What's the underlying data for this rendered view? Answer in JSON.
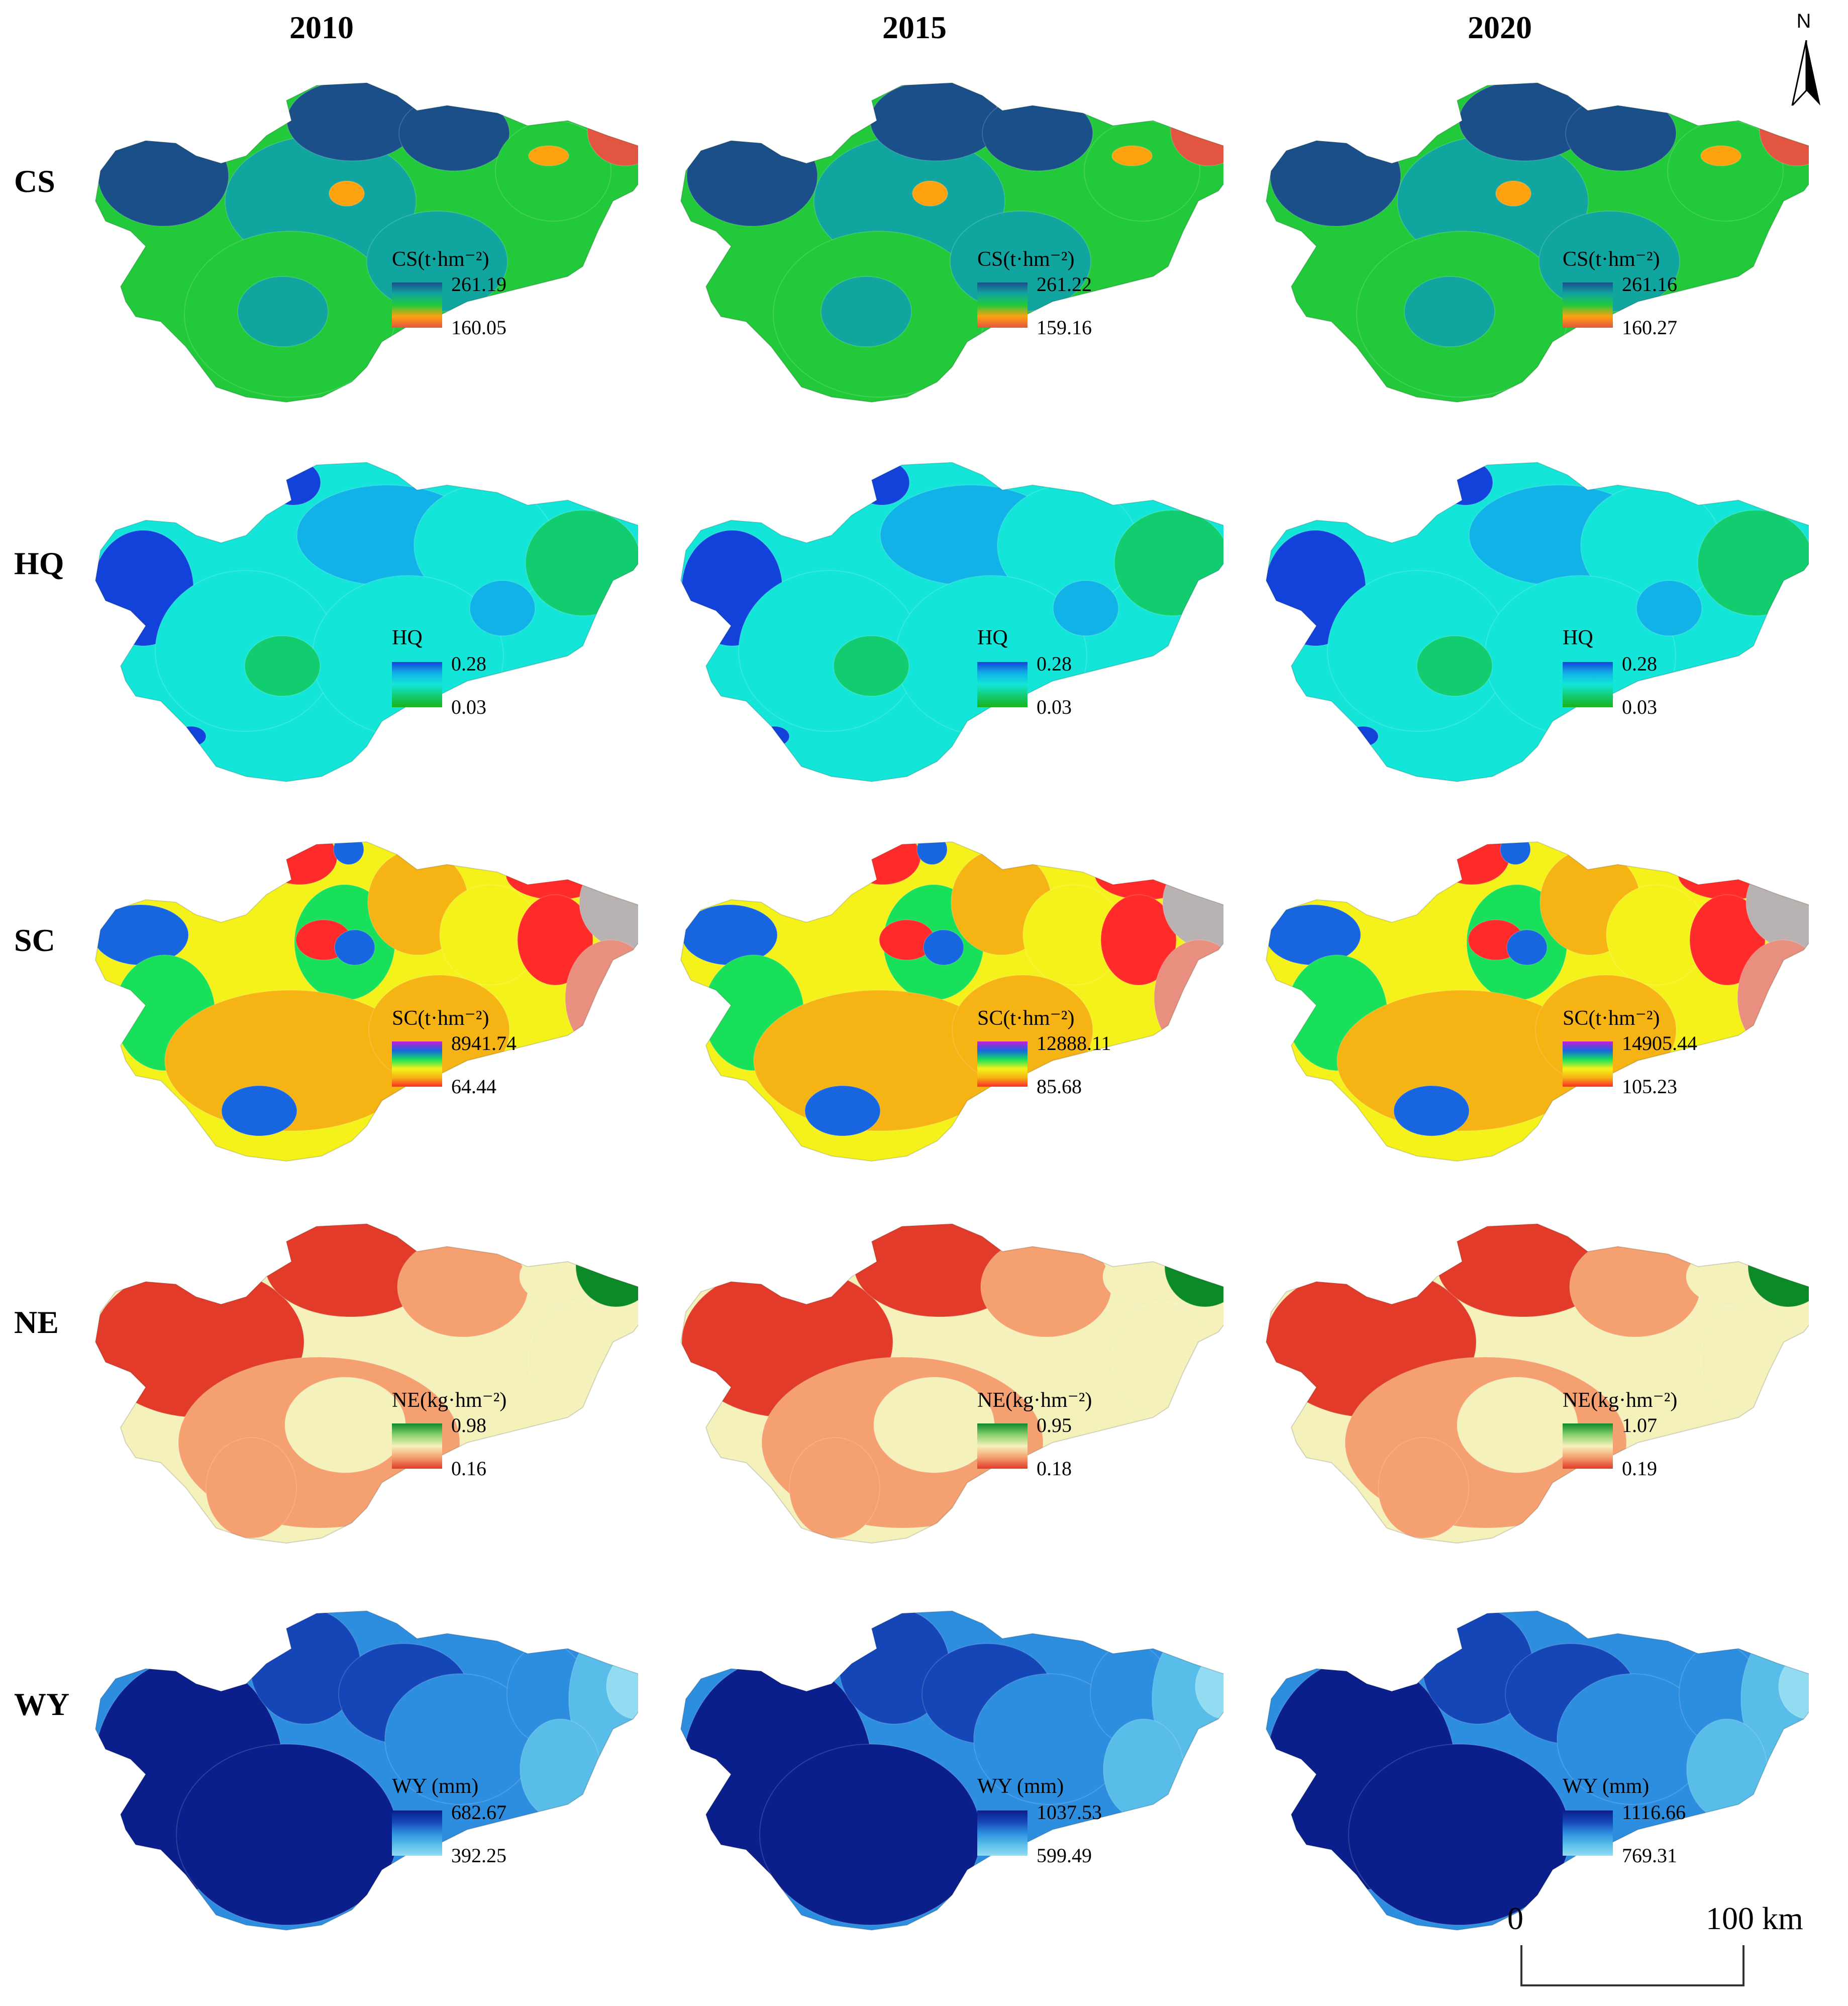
{
  "columns": [
    "2010",
    "2015",
    "2020"
  ],
  "rows": [
    {
      "id": "cs",
      "label": "CS",
      "legend_title": "CS(t·hm⁻²)",
      "colors": [
        "#1a4f8a",
        "#11a5a0",
        "#22c93a",
        "#ffa20f",
        "#e25540"
      ],
      "panels": [
        {
          "max": "261.19",
          "min": "160.05"
        },
        {
          "max": "261.22",
          "min": "159.16"
        },
        {
          "max": "261.16",
          "min": "160.27"
        }
      ]
    },
    {
      "id": "hq",
      "label": "HQ",
      "legend_title": "HQ",
      "colors": [
        "#1242d9",
        "#10b2e8",
        "#13e6d8",
        "#12cc70",
        "#18b41a"
      ],
      "panels": [
        {
          "max": "0.28",
          "min": "0.03"
        },
        {
          "max": "0.28",
          "min": "0.03"
        },
        {
          "max": "0.28",
          "min": "0.03"
        }
      ]
    },
    {
      "id": "sc",
      "label": "SC",
      "legend_title": "SC(t·hm⁻²)",
      "colors": [
        "#c81bdc",
        "#1766e0",
        "#18e05a",
        "#f5f21b",
        "#f5b314",
        "#ff2a2a"
      ],
      "panels": [
        {
          "max": "8941.74",
          "min": "64.44"
        },
        {
          "max": "12888.11",
          "min": "85.68"
        },
        {
          "max": "14905.44",
          "min": "105.23"
        }
      ]
    },
    {
      "id": "ne",
      "label": "NE",
      "legend_title": "NE(kg·hm⁻²)",
      "colors": [
        "#0d8a28",
        "#88cf6e",
        "#f5f1bb",
        "#f5a070",
        "#e23b2a"
      ],
      "panels": [
        {
          "max": "0.98",
          "min": "0.16"
        },
        {
          "max": "0.95",
          "min": "0.18"
        },
        {
          "max": "1.07",
          "min": "0.19"
        }
      ]
    },
    {
      "id": "wy",
      "label": "WY",
      "legend_title": "WY (mm)",
      "colors": [
        "#0a1e8c",
        "#1546b8",
        "#2d8ee0",
        "#58bde8",
        "#92dcf2"
      ],
      "panels": [
        {
          "max": "682.67",
          "min": "392.25"
        },
        {
          "max": "1037.53",
          "min": "599.49"
        },
        {
          "max": "1116.66",
          "min": "769.31"
        }
      ]
    }
  ],
  "north_arrow": {
    "label": "N"
  },
  "scale_bar": {
    "start": "0",
    "end": "100 km"
  }
}
